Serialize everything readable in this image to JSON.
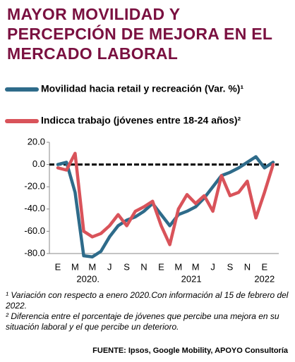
{
  "chart_data": {
    "type": "line",
    "title": "MAYOR MOVILIDAD Y PERCEPCIÓN DE MEJORA EN EL MERCADO LABORAL",
    "categories": [
      "E",
      null,
      "M",
      null,
      "M",
      null,
      "J",
      null,
      "S",
      null,
      "N",
      null,
      "E",
      null,
      "M",
      null,
      "M",
      null,
      "J",
      null,
      "S",
      null,
      "N",
      null,
      "E",
      null
    ],
    "year_labels": [
      "2020.",
      "2021",
      "2022"
    ],
    "series": [
      {
        "name": "Movilidad hacia retail y recreación (Var. %)¹",
        "color": "#2e6b8a",
        "values": [
          0,
          2,
          -25,
          -82,
          -83,
          -78,
          -65,
          -55,
          -50,
          -47,
          -42,
          -35,
          -45,
          -55,
          -45,
          -42,
          -38,
          -30,
          -20,
          -10,
          -7,
          -3,
          2,
          7,
          -3,
          2
        ]
      },
      {
        "name": "Indicca trabajo (jóvenes entre 18-24 años)²",
        "color": "#d9535a",
        "values": [
          -3,
          -5,
          10,
          -60,
          -65,
          -62,
          -55,
          -45,
          -55,
          -42,
          -38,
          -33,
          -55,
          -72,
          -40,
          -27,
          -35,
          -28,
          -42,
          -10,
          -28,
          -25,
          -15,
          -48,
          -25,
          0
        ]
      }
    ],
    "ylim": [
      -80,
      20
    ],
    "yticks": [
      {
        "value": 20,
        "label": "20.0"
      },
      {
        "value": 0,
        "label": "0.0"
      },
      {
        "value": -20,
        "label": "-20.0"
      },
      {
        "value": -40,
        "label": "-40.0"
      },
      {
        "value": -60,
        "label": "-60.0"
      },
      {
        "value": -80,
        "label": "-80.0"
      }
    ],
    "notes": [
      "¹ Variación con respecto a enero 2020.Con información al 15 de febrero del 2022.",
      "² Diferencia entre el porcentaje de jóvenes que percibe una mejora en su situación laboral y el que percibe un deterioro."
    ],
    "source": "FUENTE: Ipsos, Google Mobility, APOYO Consultoría"
  }
}
